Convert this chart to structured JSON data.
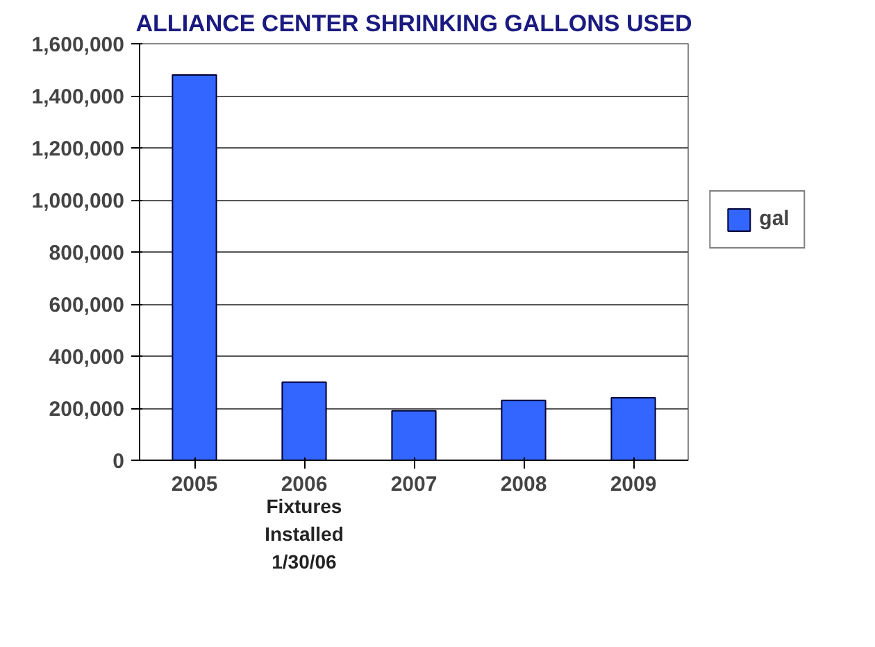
{
  "chart_data": {
    "type": "bar",
    "title": "ALLIANCE CENTER SHRINKING GALLONS USED",
    "categories": [
      "2005",
      "2006",
      "2007",
      "2008",
      "2009"
    ],
    "series": [
      {
        "name": "gal",
        "color": "#3366ff",
        "values": [
          1480000,
          300000,
          190000,
          230000,
          240000
        ]
      }
    ],
    "ylim": [
      0,
      1600000
    ],
    "yticks": [
      {
        "value": 0,
        "label": "0"
      },
      {
        "value": 200000,
        "label": "200,000"
      },
      {
        "value": 400000,
        "label": "400,000"
      },
      {
        "value": 600000,
        "label": "600,000"
      },
      {
        "value": 800000,
        "label": "800,000"
      },
      {
        "value": 1000000,
        "label": "1,000,000"
      },
      {
        "value": 1200000,
        "label": "1,200,000"
      },
      {
        "value": 1400000,
        "label": "1,400,000"
      },
      {
        "value": 1600000,
        "label": "1,600,000"
      }
    ],
    "grid": "y",
    "legend": "right",
    "annotations": [
      "Fixtures\nInstalled\n1/30/06"
    ]
  }
}
